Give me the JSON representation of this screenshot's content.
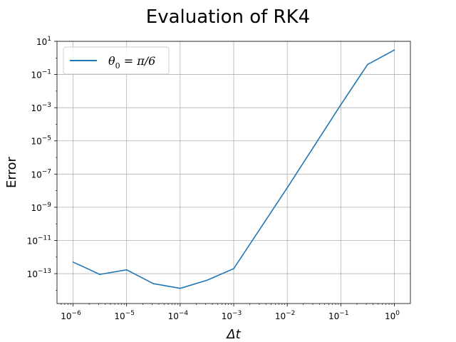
{
  "chart_data": {
    "type": "line",
    "title": "Evaluation of RK4",
    "xlabel": "Δt",
    "ylabel": "Error",
    "xscale": "log",
    "yscale": "log",
    "grid": true,
    "legend_position": "top-left",
    "xlim_log10": [
      -6.3,
      0.3
    ],
    "ylim_log10": [
      -14.8,
      1.0
    ],
    "x_ticks": [
      {
        "base": "10",
        "exp": "−6",
        "log10": -6
      },
      {
        "base": "10",
        "exp": "−5",
        "log10": -5
      },
      {
        "base": "10",
        "exp": "−4",
        "log10": -4
      },
      {
        "base": "10",
        "exp": "−3",
        "log10": -3
      },
      {
        "base": "10",
        "exp": "−2",
        "log10": -2
      },
      {
        "base": "10",
        "exp": "−1",
        "log10": -1
      },
      {
        "base": "10",
        "exp": "0",
        "log10": 0
      }
    ],
    "y_ticks": [
      {
        "base": "10",
        "exp": "1",
        "log10": 1
      },
      {
        "base": "10",
        "exp": "−1",
        "log10": -1
      },
      {
        "base": "10",
        "exp": "−3",
        "log10": -3
      },
      {
        "base": "10",
        "exp": "−5",
        "log10": -5
      },
      {
        "base": "10",
        "exp": "−7",
        "log10": -7
      },
      {
        "base": "10",
        "exp": "−9",
        "log10": -9
      },
      {
        "base": "10",
        "exp": "−11",
        "log10": -11
      },
      {
        "base": "10",
        "exp": "−13",
        "log10": -13
      }
    ],
    "series": [
      {
        "name": "θ₀ = π/6",
        "legend_parts": {
          "theta": "θ",
          "sub": "0",
          "rest": " = π/6"
        },
        "color": "#1f77b4",
        "points": [
          {
            "x": 1e-06,
            "y": 5e-13
          },
          {
            "x": 3.16e-06,
            "y": 9e-14
          },
          {
            "x": 1e-05,
            "y": 1.7e-13
          },
          {
            "x": 3.16e-05,
            "y": 2.5e-14
          },
          {
            "x": 0.0001,
            "y": 1.3e-14
          },
          {
            "x": 0.000316,
            "y": 4e-14
          },
          {
            "x": 0.001,
            "y": 2e-13
          },
          {
            "x": 0.01,
            "y": 1.5e-08
          },
          {
            "x": 0.1,
            "y": 0.0015
          },
          {
            "x": 0.316,
            "y": 0.4
          },
          {
            "x": 1.0,
            "y": 3.0
          }
        ]
      }
    ]
  }
}
